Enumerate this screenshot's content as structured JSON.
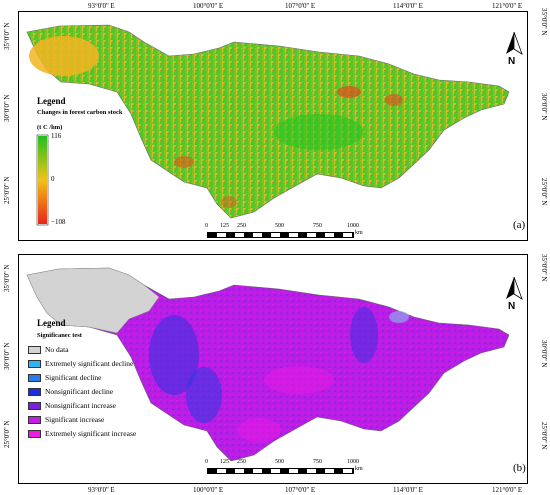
{
  "longitudes": [
    "93°0'0'' E",
    "100°0'0'' E",
    "107°0'0'' E",
    "114°0'0'' E",
    "121°0'0'' E"
  ],
  "latitudes": [
    "35°0'0'' N",
    "30°0'0'' N",
    "25°0'0'' N"
  ],
  "panel_a": {
    "legend_title": "Legend",
    "legend_subtitle": "Changes in forest carbon stock",
    "unit": "(t C /hm)",
    "max_label": "116",
    "mid_label": "0",
    "min_label": "−108",
    "colors": {
      "high": "#22c01f",
      "mid": "#f2c21a",
      "low": "#e8251a"
    },
    "panel_label": "(a)",
    "north": "N"
  },
  "panel_b": {
    "legend_title": "Legend",
    "legend_subtitle": "Significanec test",
    "categories": [
      {
        "label": "No data",
        "color": "#d3d3d3"
      },
      {
        "label": "Extremely significant decline",
        "color": "#29b6f6"
      },
      {
        "label": "Significant decline",
        "color": "#2b7be8"
      },
      {
        "label": "Nonsignificant decline",
        "color": "#1a2fe0"
      },
      {
        "label": "Nonsignificant increase",
        "color": "#7a1fe0"
      },
      {
        "label": "Significant increase",
        "color": "#c31fe6"
      },
      {
        "label": "Extremely significant increase",
        "color": "#f01ae6"
      }
    ],
    "panel_label": "(b)",
    "north": "N"
  },
  "scale_bar": {
    "ticks": [
      "0",
      "125",
      "250",
      "500",
      "750",
      "1000"
    ],
    "unit": "km"
  }
}
